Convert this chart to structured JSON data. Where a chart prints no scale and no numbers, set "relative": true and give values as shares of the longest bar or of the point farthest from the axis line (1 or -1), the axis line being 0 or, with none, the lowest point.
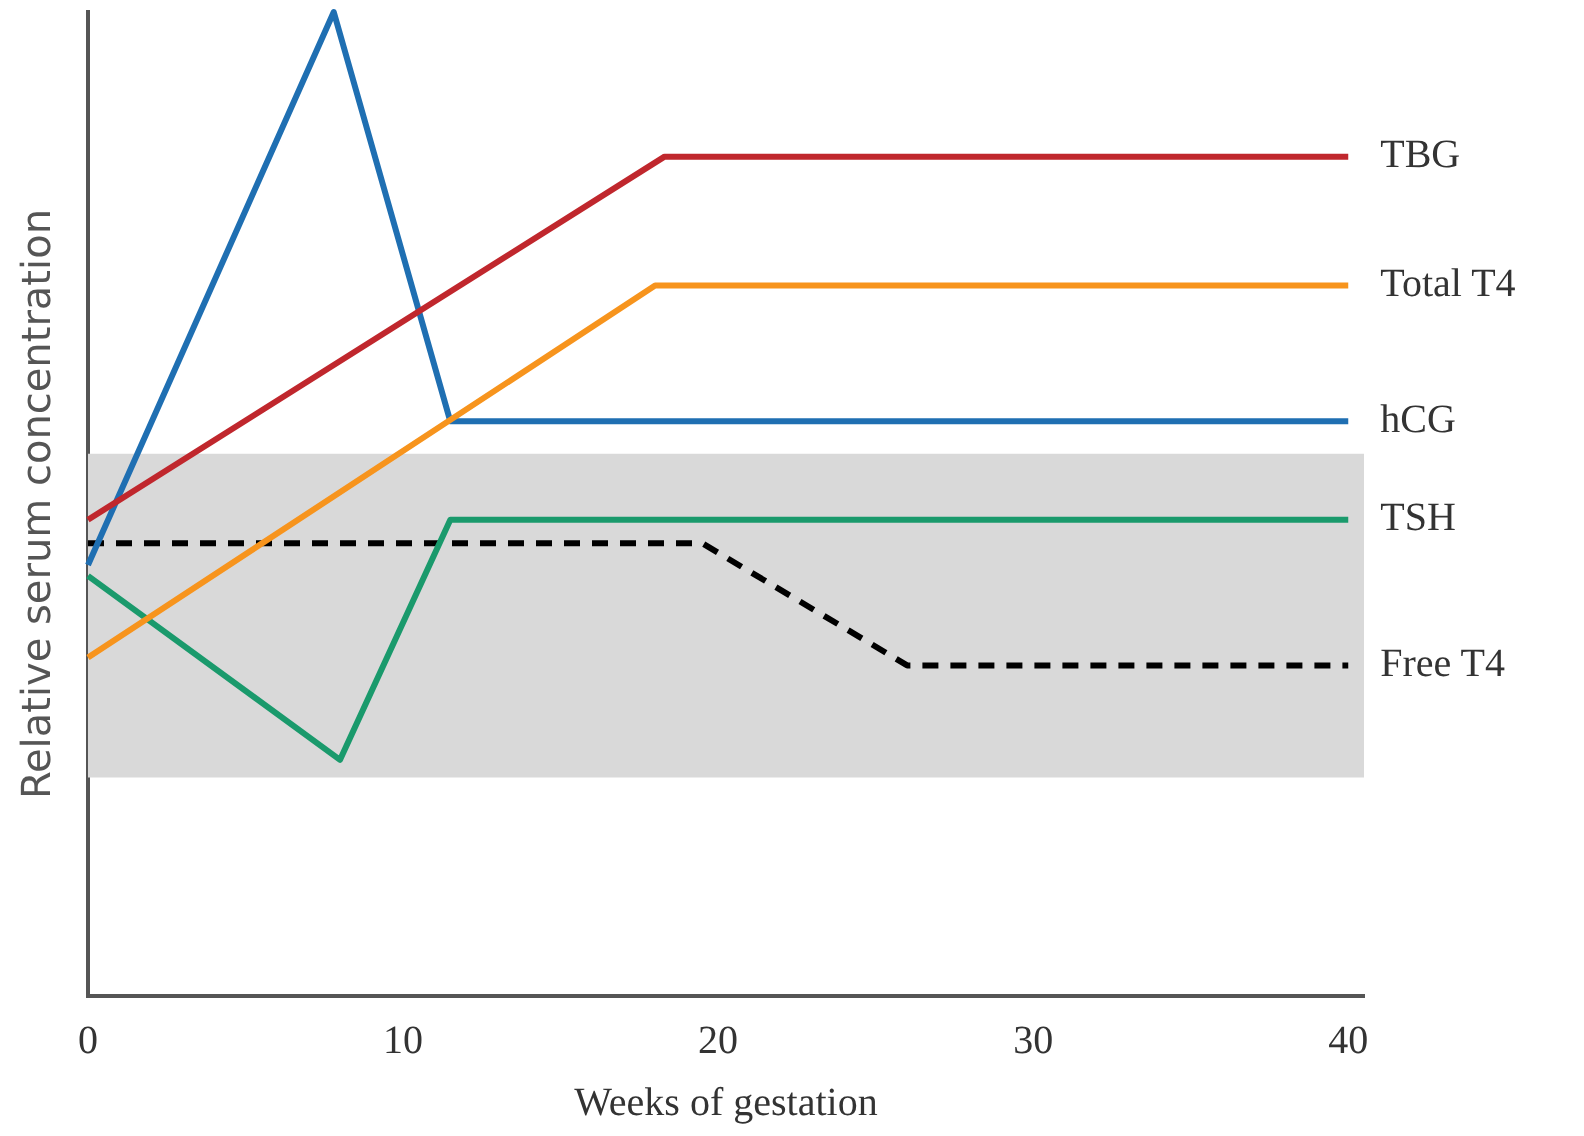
{
  "chart_data": {
    "type": "line",
    "relative": true,
    "xlabel": "Weeks of gestation",
    "ylabel": "Relative serum concentration",
    "xlim": [
      0,
      40.5
    ],
    "xticks": [
      0,
      10,
      20,
      30,
      40
    ],
    "grid": false,
    "legend": false,
    "marker": "none",
    "bands": [
      {
        "axis": "y",
        "from": 0.222,
        "to": 0.551,
        "color": "#d9d9d9"
      }
    ],
    "series": [
      {
        "name": "TBG",
        "color": "#c0272d",
        "x": [
          0,
          18.3,
          40
        ],
        "values": [
          0.484,
          0.853,
          0.853
        ]
      },
      {
        "name": "Total T4",
        "color": "#f7941d",
        "x": [
          0,
          18,
          40
        ],
        "values": [
          0.344,
          0.722,
          0.722
        ]
      },
      {
        "name": "hCG",
        "color": "#1f6fb2",
        "x": [
          0,
          7.8,
          11.5,
          40
        ],
        "values": [
          0.438,
          1,
          0.584,
          0.584
        ]
      },
      {
        "name": "TSH",
        "color": "#1a9a6c",
        "x": [
          0,
          8,
          11.5,
          40
        ],
        "values": [
          0.427,
          0.24,
          0.484,
          0.484
        ]
      },
      {
        "name": "Free T4",
        "color": "#000000",
        "line_style": "dashed",
        "x": [
          0,
          19.5,
          26,
          40
        ],
        "values": [
          0.46,
          0.46,
          0.336,
          0.336
        ]
      }
    ]
  }
}
